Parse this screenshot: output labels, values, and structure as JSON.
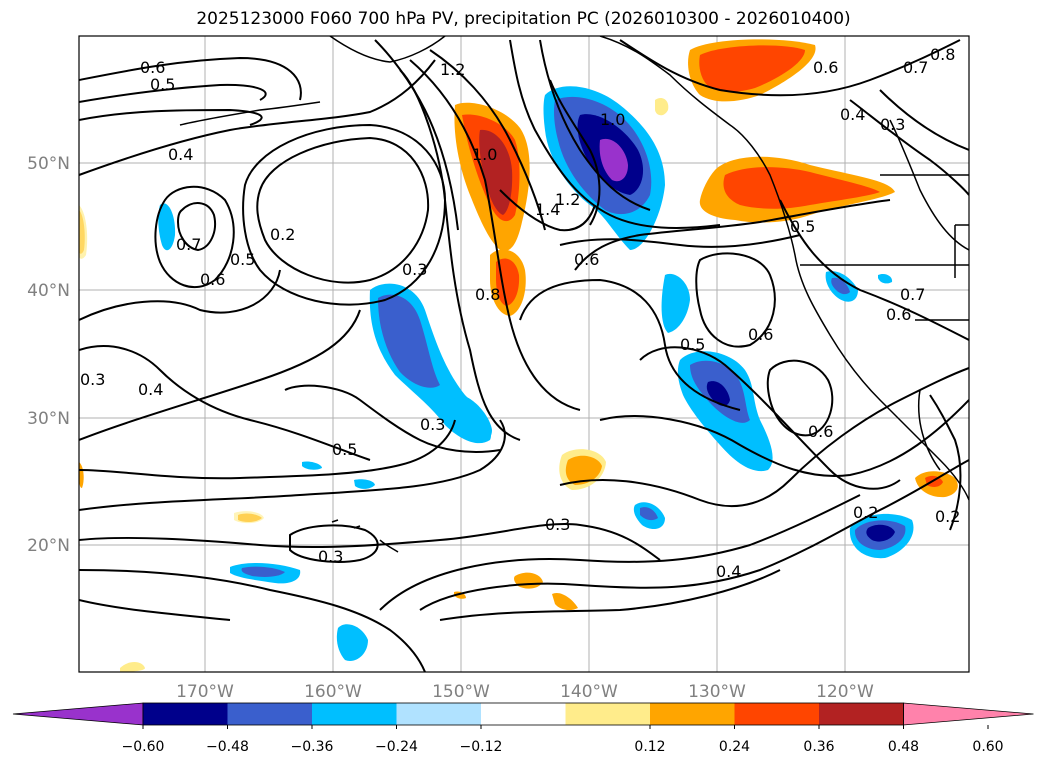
{
  "title": "2025123000 F060 700 hPa PV, precipitation PC (2026010300 - 2026010400)",
  "lon_ticks": [
    "170°W",
    "160°W",
    "150°W",
    "140°W",
    "130°W",
    "120°W"
  ],
  "lat_ticks": [
    "50°N",
    "40°N",
    "30°N",
    "20°N"
  ],
  "colorbar": {
    "colors": [
      "#9932cc",
      "#00008b",
      "#3a5fcd",
      "#00bfff",
      "#b0e2ff",
      "#ffffff",
      "#ffec8b",
      "#ffa500",
      "#ff4500",
      "#b22222",
      "#ff82ab"
    ],
    "tick_labels": [
      "−0.60",
      "−0.48",
      "−0.36",
      "−0.24",
      "−0.12",
      "0.12",
      "0.24",
      "0.36",
      "0.48",
      "0.60"
    ]
  },
  "pv_contour_labels": [
    "0.6",
    "0.5",
    "1.2",
    "0.6",
    "0.7",
    "0.8",
    "0.4",
    "0.3",
    "0.4",
    "1.0",
    "0.7",
    "0.5",
    "0.2",
    "0.6",
    "1.4",
    "1.2",
    "0.6",
    "0.5",
    "0.3",
    "0.8",
    "0.6",
    "0.3",
    "0.4",
    "0.5",
    "0.3",
    "0.5",
    "0.6",
    "0.3",
    "0.3",
    "0.4",
    "0.2",
    "0.2",
    "0.7",
    "0.6",
    "1.0"
  ],
  "colors": {
    "contour": "#000000",
    "grid": "#b0b0b0",
    "tick_text": "#808080"
  }
}
